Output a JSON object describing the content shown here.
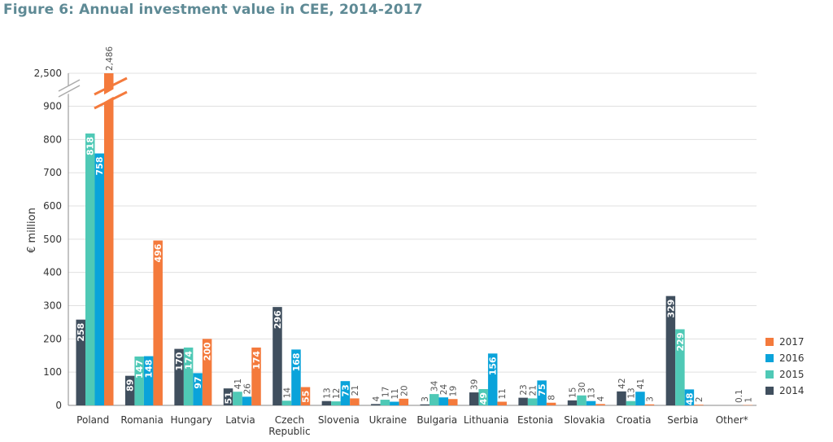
{
  "title": "Figure 6: Annual investment value in CEE, 2014-2017",
  "chart_data": {
    "type": "bar",
    "title": "Figure 6: Annual investment value in CEE, 2014-2017",
    "xlabel": "",
    "ylabel": "€ million",
    "ylim": [
      0,
      1000
    ],
    "y_axis_break": {
      "between": [
        900,
        2500
      ],
      "top_tick_label": "2,500"
    },
    "grid": true,
    "legend_position": "right",
    "yticks": [
      "0",
      "100",
      "200",
      "300",
      "400",
      "500",
      "600",
      "700",
      "800",
      "900",
      "2,500"
    ],
    "categories": [
      [
        "Poland"
      ],
      [
        "Romania"
      ],
      [
        "Hungary"
      ],
      [
        "Latvia"
      ],
      [
        "Czech",
        "Republic"
      ],
      [
        "Slovenia"
      ],
      [
        "Ukraine"
      ],
      [
        "Bulgaria"
      ],
      [
        "Lithuania"
      ],
      [
        "Estonia"
      ],
      [
        "Slovakia"
      ],
      [
        "Croatia"
      ],
      [
        "Serbia"
      ],
      [
        "Other*"
      ]
    ],
    "series": [
      {
        "name": "2014",
        "color": "#404f5e",
        "values": [
          258,
          89,
          170,
          51,
          296,
          13,
          4,
          3,
          39,
          23,
          15,
          42,
          329,
          0
        ],
        "labels": [
          "258",
          "89",
          "170",
          "51",
          "296",
          "13",
          "4",
          "3",
          "39",
          "23",
          "15",
          "42",
          "329",
          ""
        ]
      },
      {
        "name": "2015",
        "color": "#4fc9b6",
        "values": [
          818,
          147,
          174,
          41,
          14,
          12,
          17,
          34,
          49,
          21,
          30,
          13,
          229,
          0
        ],
        "labels": [
          "818",
          "147",
          "174",
          "41",
          "14",
          "12",
          "17",
          "34",
          "49",
          "21",
          "30",
          "13",
          "229",
          ""
        ]
      },
      {
        "name": "2016",
        "color": "#0aa3da",
        "values": [
          758,
          148,
          97,
          26,
          168,
          73,
          11,
          24,
          156,
          75,
          13,
          41,
          48,
          0.1
        ],
        "labels": [
          "758",
          "148",
          "97",
          "26",
          "168",
          "73",
          "11",
          "24",
          "156",
          "75",
          "13",
          "41",
          "48",
          "0.1"
        ]
      },
      {
        "name": "2017",
        "color": "#f47a3c",
        "values": [
          2486,
          496,
          200,
          174,
          55,
          21,
          20,
          19,
          11,
          8,
          4,
          3,
          2,
          1
        ],
        "labels": [
          "2,486",
          "496",
          "200",
          "174",
          "55",
          "21",
          "20",
          "19",
          "11",
          "8",
          "4",
          "3",
          "2",
          "1"
        ]
      }
    ],
    "legend_order": [
      "2017",
      "2016",
      "2015",
      "2014"
    ]
  }
}
